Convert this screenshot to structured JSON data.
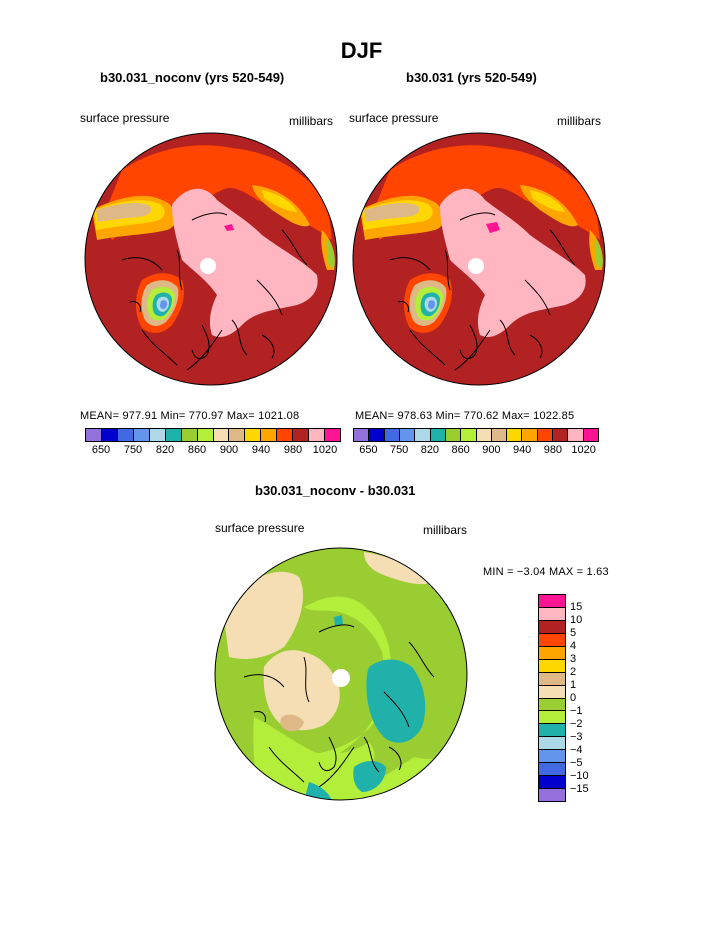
{
  "title": "DJF",
  "panels": [
    {
      "title": "b30.031_noconv (yrs 520-549)",
      "left_label": "surface pressure",
      "right_label": "millibars",
      "stats": "MEAN= 977.91  Min= 770.97  Max= 1021.08"
    },
    {
      "title": "b30.031 (yrs 520-549)",
      "left_label": "surface pressure",
      "right_label": "millibars",
      "stats": "MEAN= 978.63  Min= 770.62  Max= 1022.85"
    }
  ],
  "colorbar_top": {
    "colors": [
      "#9370db",
      "#0000cd",
      "#4169e1",
      "#6495ed",
      "#add8e6",
      "#20b2aa",
      "#9acd32",
      "#b3ee3a",
      "#f5deb3",
      "#deb887",
      "#ffd700",
      "#ffa500",
      "#ff4500",
      "#b22222",
      "#ffb6c1",
      "#ff1493"
    ],
    "tick_labels": [
      "650",
      "750",
      "820",
      "860",
      "900",
      "940",
      "980",
      "1020"
    ]
  },
  "diff_panel": {
    "title": "b30.031_noconv - b30.031",
    "left_label": "surface pressure",
    "right_label": "millibars",
    "stats": "MIN =   −3.04  MAX =    1.63"
  },
  "colorbar_diff": {
    "colors": [
      "#ff1493",
      "#ffb6c1",
      "#b22222",
      "#ff4500",
      "#ffa500",
      "#ffd700",
      "#deb887",
      "#f5deb3",
      "#9acd32",
      "#b3ee3a",
      "#20b2aa",
      "#add8e6",
      "#6495ed",
      "#4169e1",
      "#0000cd",
      "#9370db"
    ],
    "tick_labels": [
      "15",
      "10",
      "5",
      "4",
      "3",
      "2",
      "1",
      "0",
      "−1",
      "−2",
      "−3",
      "−4",
      "−5",
      "−10",
      "−15"
    ]
  },
  "colors": {
    "dark_red": "#b22222",
    "pink": "#ffb6c1",
    "orange": "#ff4500",
    "light_orange": "#ffa500",
    "yellow": "#ffd700",
    "tan": "#deb887",
    "wheat": "#f5deb3",
    "green": "#9acd32",
    "light_green": "#b3ee3a",
    "teal": "#20b2aa",
    "magenta": "#ff1493"
  }
}
